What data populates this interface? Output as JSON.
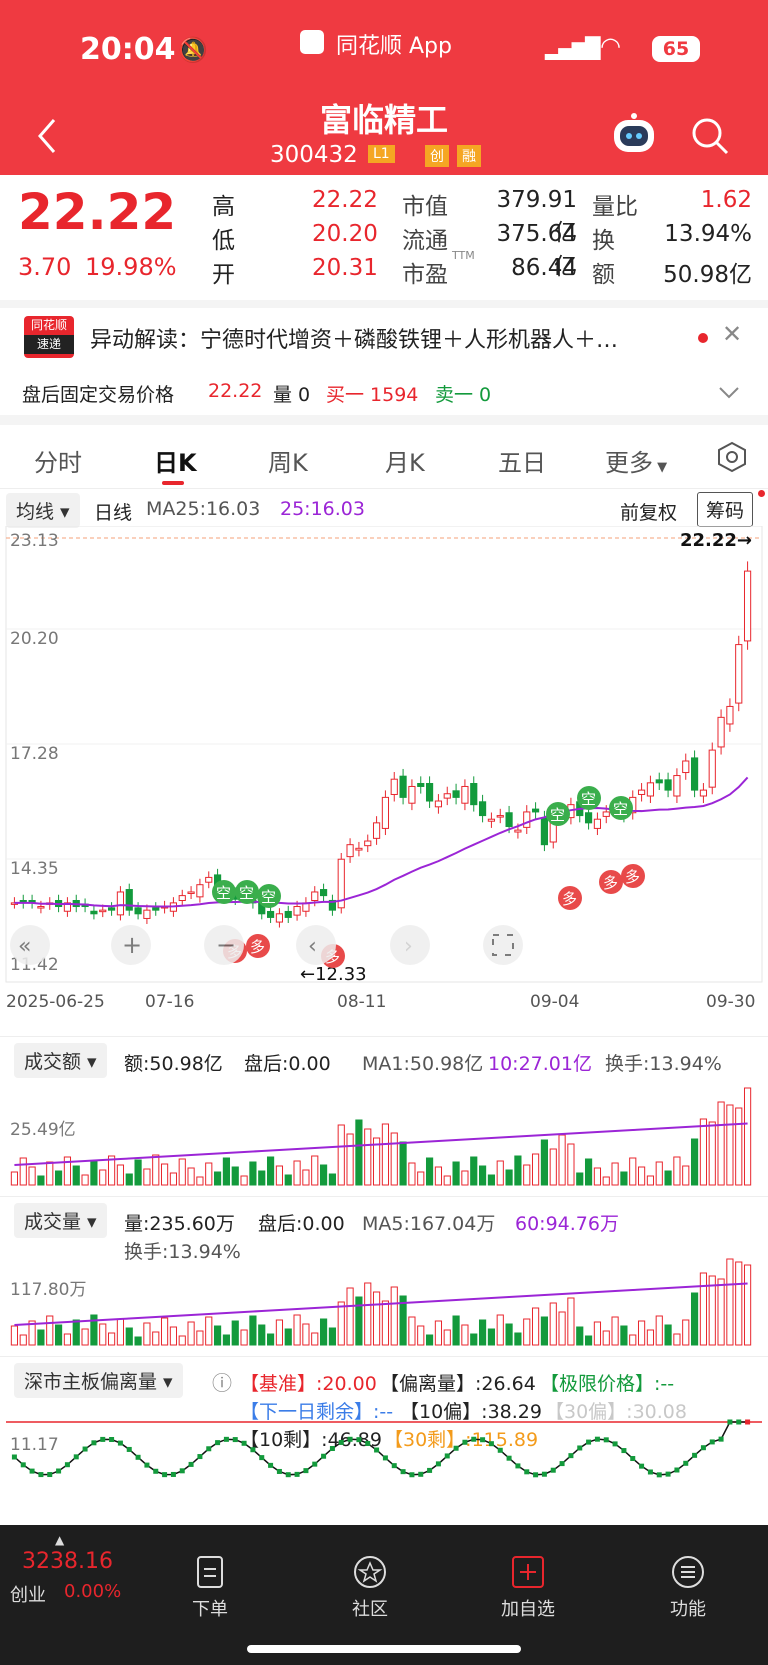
{
  "status": {
    "time": "20:04",
    "app": "同花顺 App",
    "battery": "65"
  },
  "header": {
    "title": "富临精工",
    "code": "300432",
    "tag1": "L1",
    "tag2": "创",
    "tag3": "融"
  },
  "quote": {
    "price": "22.22",
    "change": "3.70",
    "pct": "19.98%",
    "rows": [
      {
        "l1": "高",
        "v1": "22.22",
        "l2": "市值",
        "v2": "379.91亿",
        "l3": "量比",
        "v3": "1.62"
      },
      {
        "l1": "低",
        "v1": "20.20",
        "l2": "流通",
        "v2": "375.64亿",
        "l3": "换",
        "v3": "13.94%"
      },
      {
        "l1": "开",
        "v1": "20.31",
        "l2": "市盈",
        "sup": "TTM",
        "v2": "86.44",
        "l3": "额",
        "v3": "50.98亿"
      }
    ]
  },
  "news": {
    "logo_top": "同花顺",
    "logo_bottom": "速递",
    "text": "异动解读：宁德时代增资＋磷酸铁锂＋人形机器人＋…"
  },
  "afterhours": {
    "label": "盘后固定交易价格",
    "price": "22.22",
    "vol_label": "量 0",
    "buy": "买一 1594",
    "sell": "卖一 0"
  },
  "tabs": [
    "分时",
    "日K",
    "周K",
    "月K",
    "五日",
    "更多"
  ],
  "kline": {
    "ma_btn": "均线",
    "period": "日线",
    "ma25": "MA25:16.03",
    "ma25b": "25:16.03",
    "adjust": "前复权",
    "chip": "筹码",
    "y_labels": [
      "23.13",
      "20.20",
      "17.28",
      "14.35",
      "11.42"
    ],
    "high_marker": "22.22→",
    "low_marker": "←12.33",
    "dates": [
      "2025-06-25",
      "07-16",
      "08-11",
      "09-04",
      "09-30"
    ],
    "signals_kong": "空",
    "signals_duo": "多"
  },
  "amount": {
    "btn": "成交额",
    "v": "额:50.98亿",
    "after": "盘后:0.00",
    "ma1": "MA1:50.98亿",
    "ma10": "10:27.01亿",
    "turn": "换手:13.94%",
    "axis": "25.49亿"
  },
  "volume": {
    "btn": "成交量",
    "v": "量:235.60万",
    "after": "盘后:0.00",
    "ma5": "MA5:167.04万",
    "ma60": "60:94.76万",
    "turn": "换手:13.94%",
    "axis": "117.80万"
  },
  "deviation": {
    "btn": "深市主板偏离量",
    "base": "【基准】:20.00",
    "dev": "【偏离量】:26.64",
    "limit": "【极限价格】:--",
    "next": "【下一日剩余】:--",
    "p10": "【10偏】:38.29",
    "p30": "【30偏】:30.08",
    "r10": "【10剩】:46.89",
    "r30": "【30剩】:115.89",
    "axis": "11.17"
  },
  "bottom": {
    "index": "3238.16",
    "name": "创业",
    "pct": "0.00%",
    "nav": [
      "下单",
      "社区",
      "加自选",
      "功能"
    ]
  },
  "chart_data": {
    "type": "candlestick",
    "x_range": [
      "2025-06-25",
      "2025-09-30"
    ],
    "ylim": [
      11.42,
      23.13
    ],
    "last_close": 22.22,
    "low": 12.33
  }
}
